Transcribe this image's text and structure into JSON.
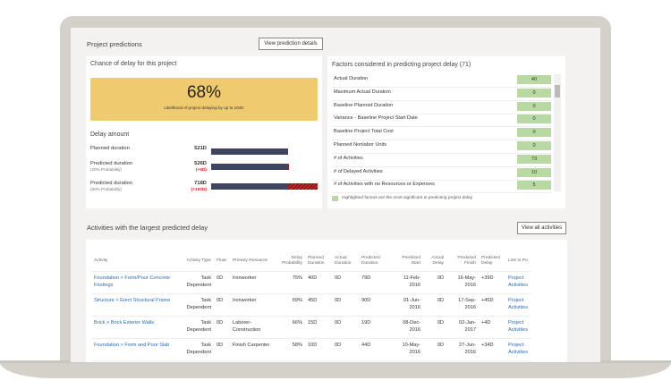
{
  "predictions": {
    "title": "Project predictions",
    "details_button": "View prediction details",
    "chance": {
      "title": "Chance of delay for this project",
      "percent": "68%",
      "subtitle": "Likelihood of project delaying by up to 104D",
      "color": "#efca6e"
    },
    "delay": {
      "title": "Delay amount",
      "rows": [
        {
          "label": "Planned duration",
          "note": "",
          "value": "521D",
          "delta": "",
          "fill": 0.725,
          "ext": 0
        },
        {
          "label": "Predicted duration",
          "note": "(20% Probability)",
          "value": "526D",
          "delta": "(+5D)",
          "fill": 0.725,
          "ext": 0.007
        },
        {
          "label": "Predicted duration",
          "note": "(80% Probability)",
          "value": "718D",
          "delta": "(+197D)",
          "fill": 0.725,
          "ext": 0.275
        }
      ]
    },
    "factors": {
      "title": "Factors considered in predicting project delay (71)",
      "legend": "Highlighted factors are the most significant in predicting project delay",
      "color": "#b9d9a3",
      "items": [
        {
          "name": "Actual Duration",
          "value": "40"
        },
        {
          "name": "Maximum Actual Duration",
          "value": "0"
        },
        {
          "name": "Baseline Planned Duration",
          "value": "0"
        },
        {
          "name": "Variance - Baseline Project Start Date",
          "value": "0"
        },
        {
          "name": "Baseline Project Total Cost",
          "value": "0"
        },
        {
          "name": "Planned Nonlabor Units",
          "value": "0"
        },
        {
          "name": "# of Activities",
          "value": "73"
        },
        {
          "name": "# of Delayed Activities",
          "value": "10"
        },
        {
          "name": "# of Activities with no Resources or Expenses",
          "value": "5"
        }
      ]
    }
  },
  "activities": {
    "title": "Activities with the largest predicted delay",
    "view_all": "View all activities",
    "columns": [
      "Activity",
      "Activity Type",
      "Float",
      "Primary Resource",
      "Delay Probability",
      "Planned Duration",
      "Actual Duration",
      "Predicted Duration",
      "Predicted Start",
      "Actual Delay",
      "Predicted Finish",
      "Predicted Delay",
      "Link to Po"
    ],
    "rows": [
      [
        "Foundation > Form/Pour Concrete Footings",
        "Task Dependent",
        "0D",
        "Ironworker",
        "75%",
        "40D",
        "0D",
        "79D",
        "11-Feb-2016",
        "0D",
        "16-May-2016",
        "+39D",
        "Project Activities"
      ],
      [
        "Structure > Erect Structural Frame",
        "Task Dependent",
        "0D",
        "Ironworker",
        "69%",
        "45D",
        "0D",
        "90D",
        "01-Jun-2016",
        "0D",
        "17-Sep-2016",
        "+45D",
        "Project Activities"
      ],
      [
        "Brick > Brick Exterior Walls",
        "Task Dependent",
        "0D",
        "Laborer-Construction",
        "66%",
        "15D",
        "0D",
        "19D",
        "08-Dec-2016",
        "0D",
        "02-Jan-2017",
        "+4D",
        "Project Activities"
      ],
      [
        "Foundation > Form and Pour Slab",
        "Task Dependent",
        "0D",
        "Finish Carpenter",
        "58%",
        "10D",
        "0D",
        "44D",
        "10-May-2016",
        "0D",
        "27-Jun-2016",
        "+34D",
        "Project Activities"
      ]
    ]
  }
}
